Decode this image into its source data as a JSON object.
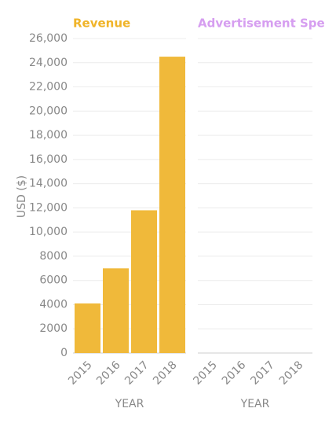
{
  "chart_data": [
    {
      "type": "bar",
      "title": "Revenue",
      "y_label": "USD ($)",
      "x_label": "YEAR",
      "color": "#f0b93a",
      "title_color": "#f0b429",
      "categories": [
        "2015",
        "2016",
        "2017",
        "2018"
      ],
      "values": [
        4100,
        7000,
        11800,
        24500
      ],
      "ylim": [
        0,
        26000
      ],
      "yticks": [
        0,
        2000,
        4000,
        6000,
        8000,
        {
          "value": 10000,
          "label": "10,000"
        },
        {
          "value": 12000,
          "label": "12,000"
        },
        {
          "value": 14000,
          "label": "14,000"
        },
        {
          "value": 16000,
          "label": "16,000"
        },
        {
          "value": 18000,
          "label": "18,000"
        },
        {
          "value": 20000,
          "label": "20,000"
        },
        {
          "value": 22000,
          "label": "22,000"
        },
        {
          "value": 24000,
          "label": "24,000"
        },
        {
          "value": 26000,
          "label": "26,000"
        }
      ],
      "grid": true
    },
    {
      "type": "bar",
      "title": "Advertisement Spend",
      "x_label": "YEAR",
      "color": "#d69ef0",
      "title_color": "#d69ef0",
      "categories": [
        "2015",
        "2016",
        "2017",
        "2018"
      ],
      "values": [
        null,
        null,
        null,
        null
      ],
      "ylim": [
        0,
        26000
      ],
      "yticks": [
        0,
        2000,
        4000,
        6000,
        8000,
        10000,
        12000,
        14000,
        16000,
        18000,
        20000,
        22000,
        24000,
        26000
      ],
      "grid": true
    }
  ]
}
